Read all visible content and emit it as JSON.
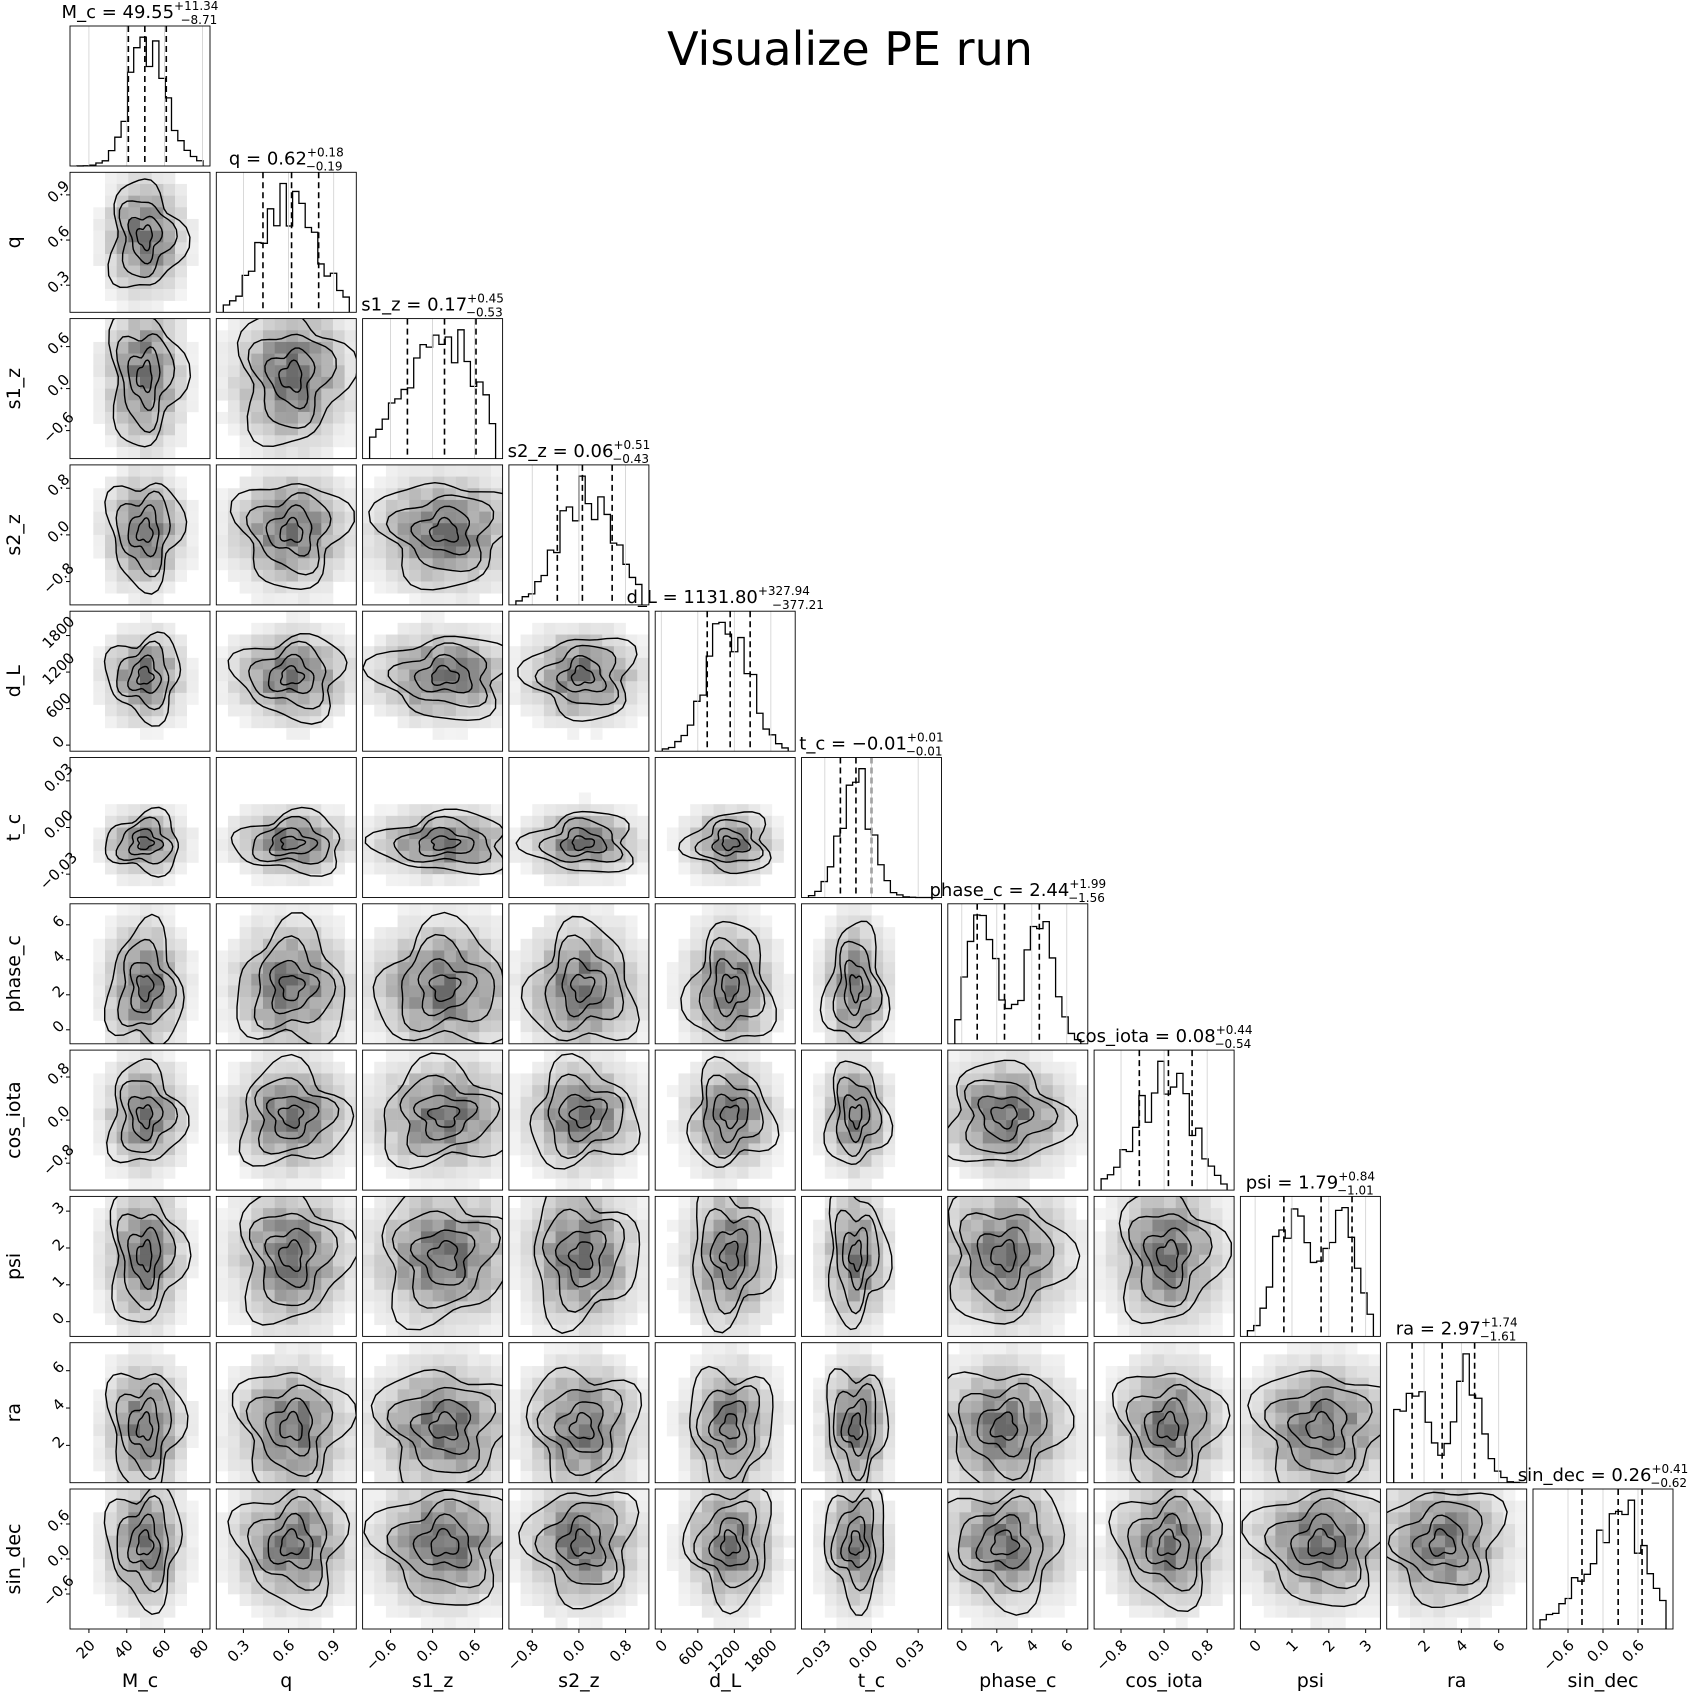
{
  "chart_data": {
    "type": "corner",
    "title": "Visualize PE run",
    "parameters": [
      {
        "name": "M_c",
        "label": "M_c",
        "median": "49.55",
        "plus": "+11.34",
        "minus": "−8.71",
        "range": [
          10,
          84
        ],
        "ticks": [
          20,
          40,
          60,
          80
        ],
        "tick_labels": [
          "20",
          "40",
          "60",
          "80"
        ],
        "quantiles": [
          40.84,
          49.55,
          60.89
        ],
        "mode": [
          49.55
        ]
      },
      {
        "name": "q",
        "label": "q",
        "median": "0.62",
        "plus": "+0.18",
        "minus": "−0.19",
        "range": [
          0.12,
          1.05
        ],
        "ticks": [
          0.3,
          0.6,
          0.9
        ],
        "tick_labels": [
          "0.3",
          "0.6",
          "0.9"
        ],
        "quantiles": [
          0.43,
          0.62,
          0.8
        ],
        "mode": [
          0.62
        ]
      },
      {
        "name": "s1_z",
        "label": "s1_z",
        "median": "0.17",
        "plus": "+0.45",
        "minus": "−0.53",
        "range": [
          -1.0,
          1.0
        ],
        "ticks": [
          -0.6,
          0.0,
          0.6
        ],
        "tick_labels": [
          "−0.6",
          "0.0",
          "0.6"
        ],
        "quantiles": [
          -0.36,
          0.17,
          0.62
        ],
        "mode": [
          0.17
        ]
      },
      {
        "name": "s2_z",
        "label": "s2_z",
        "median": "0.06",
        "plus": "+0.51",
        "minus": "−0.43",
        "range": [
          -1.2,
          1.2
        ],
        "ticks": [
          -0.8,
          0.0,
          0.8
        ],
        "tick_labels": [
          "−0.8",
          "0.0",
          "0.8"
        ],
        "quantiles": [
          -0.37,
          0.06,
          0.57
        ],
        "mode": [
          0.06
        ]
      },
      {
        "name": "d_L",
        "label": "d_L",
        "median": "1131.80",
        "plus": "+327.94",
        "minus": "−377.21",
        "range": [
          -100,
          2200
        ],
        "ticks": [
          0,
          600,
          1200,
          1800
        ],
        "tick_labels": [
          "0",
          "600",
          "1200",
          "1800"
        ],
        "quantiles": [
          754.59,
          1131.8,
          1459.74
        ],
        "mode": [
          1131.8
        ]
      },
      {
        "name": "t_c",
        "label": "t_c",
        "median": "−0.01",
        "plus": "+0.01",
        "minus": "−0.01",
        "range": [
          -0.045,
          0.045
        ],
        "ticks": [
          -0.03,
          0.0,
          0.03
        ],
        "tick_labels": [
          "−0.03",
          "0.00",
          "0.03"
        ],
        "quantiles": [
          -0.02,
          -0.01,
          0.0
        ],
        "mode": [
          -0.01
        ]
      },
      {
        "name": "phase_c",
        "label": "phase_c",
        "median": "2.44",
        "plus": "+1.99",
        "minus": "−1.56",
        "range": [
          -0.8,
          7.2
        ],
        "ticks": [
          0,
          2,
          4,
          6
        ],
        "tick_labels": [
          "0",
          "2",
          "4",
          "6"
        ],
        "quantiles": [
          0.88,
          2.44,
          4.43
        ],
        "mode": [
          1.0,
          4.3
        ]
      },
      {
        "name": "cos_iota",
        "label": "cos_iota",
        "median": "0.08",
        "plus": "+0.44",
        "minus": "−0.54",
        "range": [
          -1.3,
          1.3
        ],
        "ticks": [
          -0.8,
          0.0,
          0.8
        ],
        "tick_labels": [
          "−0.8",
          "0.0",
          "0.8"
        ],
        "quantiles": [
          -0.46,
          0.08,
          0.52
        ],
        "mode": [
          0.08
        ]
      },
      {
        "name": "psi",
        "label": "psi",
        "median": "1.79",
        "plus": "+0.84",
        "minus": "−1.01",
        "range": [
          -0.4,
          3.4
        ],
        "ticks": [
          0,
          1,
          2,
          3
        ],
        "tick_labels": [
          "0",
          "1",
          "2",
          "3"
        ],
        "quantiles": [
          0.78,
          1.79,
          2.63
        ],
        "mode": [
          1.0,
          2.4
        ]
      },
      {
        "name": "ra",
        "label": "ra",
        "median": "2.97",
        "plus": "+1.74",
        "minus": "−1.61",
        "range": [
          0.0,
          7.5
        ],
        "ticks": [
          2,
          4,
          6
        ],
        "tick_labels": [
          "2",
          "4",
          "6"
        ],
        "quantiles": [
          1.36,
          2.97,
          4.71
        ],
        "mode": [
          1.3,
          4.3
        ]
      },
      {
        "name": "sin_dec",
        "label": "sin_dec",
        "median": "0.26",
        "plus": "+0.41",
        "minus": "−0.62",
        "range": [
          -1.2,
          1.2
        ],
        "ticks": [
          -0.6,
          0.0,
          0.6
        ],
        "tick_labels": [
          "−0.6",
          "0.0",
          "0.6"
        ],
        "quantiles": [
          -0.36,
          0.26,
          0.67
        ],
        "mode": [
          0.35
        ]
      }
    ],
    "grid": false,
    "contour_color": "#000000",
    "hist_color": "#000000"
  }
}
